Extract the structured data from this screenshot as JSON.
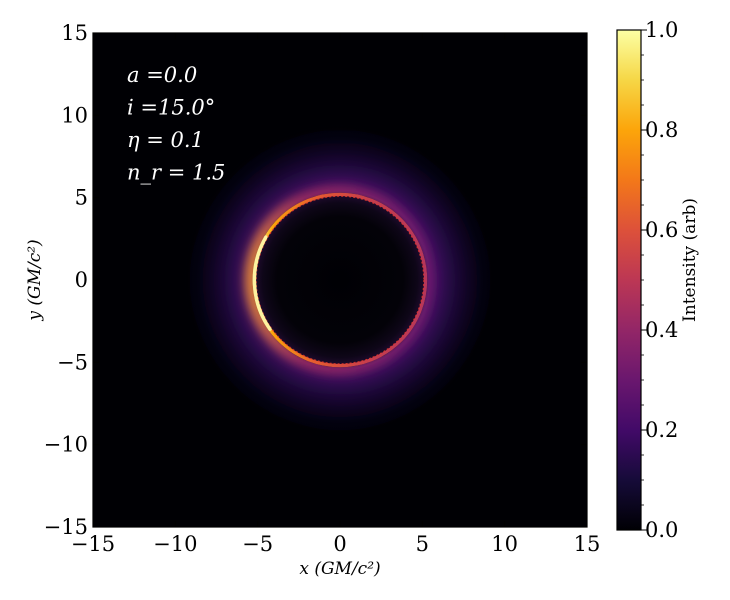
{
  "chart_data": {
    "type": "heatmap",
    "title": "",
    "xlabel": "x (GM/c²)",
    "ylabel": "y (GM/c²)",
    "xlim": [
      -15,
      15
    ],
    "ylim": [
      -15,
      15
    ],
    "x_ticks": [
      "−15",
      "−10",
      "−5",
      "0",
      "5",
      "10",
      "15"
    ],
    "y_ticks": [
      "15",
      "10",
      "5",
      "0",
      "−5",
      "−10",
      "−15"
    ],
    "grid": false,
    "colormap": "inferno",
    "colorbar": {
      "label": "Intensity (arb)",
      "range": [
        0.0,
        1.0
      ],
      "ticks": [
        "0.0",
        "0.2",
        "0.4",
        "0.6",
        "0.8",
        "1.0"
      ]
    },
    "annotations": [
      "a =0.0",
      "i =15.0°",
      "η = 0.1",
      "n_r = 1.5"
    ],
    "features": {
      "photon_ring_center": [
        0,
        0
      ],
      "photon_ring_radius": 5.2,
      "shadow_radius": 5.0,
      "brightest_side": "left",
      "ring_peak_intensity": 1.0,
      "diffuse_halo_extent": 9.5
    }
  }
}
